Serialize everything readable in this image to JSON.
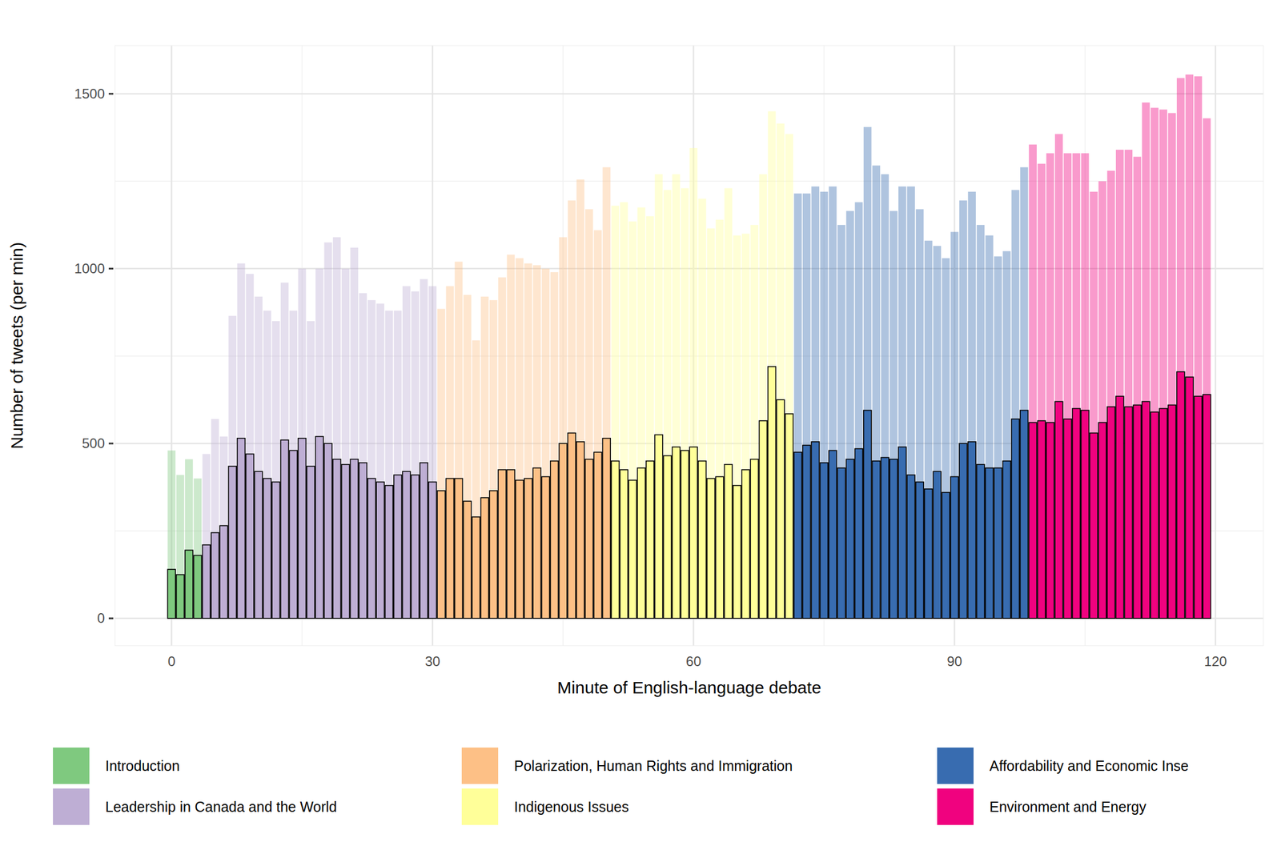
{
  "chart_data": {
    "type": "bar",
    "x_label": "Minute of English-language debate",
    "y_label": "Number of tweets (per min)",
    "xlim": [
      -6.5,
      125.5
    ],
    "ylim": [
      -78,
      1638
    ],
    "xticks": [
      0,
      30,
      60,
      90,
      120
    ],
    "yticks": [
      0,
      500,
      1000,
      1500
    ],
    "grid": true,
    "legend": "bottom",
    "series": [
      {
        "name": "Introduction",
        "color": "#7fc97f",
        "x": [
          0,
          1,
          2,
          3
        ],
        "totals": [
          480,
          410,
          455,
          400
        ],
        "values": [
          140,
          125,
          195,
          180
        ]
      },
      {
        "name": "Leadership in Canada and the World",
        "color": "#beaed4",
        "x": [
          4,
          5,
          6,
          7,
          8,
          9,
          10,
          11,
          12,
          13,
          14,
          15,
          16,
          17,
          18,
          19,
          20,
          21,
          22,
          23,
          24,
          25,
          26,
          27,
          28,
          29,
          30
        ],
        "totals": [
          470,
          570,
          520,
          865,
          1015,
          985,
          920,
          880,
          850,
          960,
          880,
          1000,
          850,
          1000,
          1075,
          1090,
          1000,
          1060,
          930,
          910,
          900,
          880,
          880,
          950,
          935,
          970,
          950
        ],
        "values": [
          210,
          245,
          265,
          435,
          515,
          470,
          420,
          400,
          390,
          510,
          480,
          515,
          435,
          520,
          500,
          455,
          440,
          455,
          445,
          400,
          390,
          380,
          410,
          420,
          410,
          445,
          390
        ]
      },
      {
        "name": "Polarization, Human Rights and Immigration",
        "color": "#fdc086",
        "x": [
          31,
          32,
          33,
          34,
          35,
          36,
          37,
          38,
          39,
          40,
          41,
          42,
          43,
          44,
          45,
          46,
          47,
          48,
          49,
          50
        ],
        "totals": [
          885,
          950,
          1020,
          925,
          795,
          920,
          910,
          975,
          1040,
          1030,
          1015,
          1010,
          1000,
          990,
          1090,
          1195,
          1255,
          1170,
          1110,
          1290
        ],
        "values": [
          365,
          400,
          400,
          335,
          290,
          345,
          365,
          425,
          425,
          395,
          400,
          430,
          405,
          450,
          500,
          530,
          505,
          455,
          475,
          515
        ]
      },
      {
        "name": "Indigenous Issues",
        "color": "#ffff99",
        "x": [
          51,
          52,
          53,
          54,
          55,
          56,
          57,
          58,
          59,
          60,
          61,
          62,
          63,
          64,
          65,
          66,
          67,
          68,
          69,
          70,
          71
        ],
        "totals": [
          1180,
          1190,
          1135,
          1175,
          1150,
          1270,
          1225,
          1270,
          1230,
          1345,
          1200,
          1115,
          1140,
          1230,
          1095,
          1100,
          1125,
          1270,
          1450,
          1415,
          1385
        ],
        "values": [
          450,
          425,
          395,
          430,
          450,
          525,
          465,
          490,
          480,
          490,
          450,
          400,
          405,
          440,
          380,
          425,
          455,
          565,
          720,
          625,
          585
        ]
      },
      {
        "name": "Affordability and Economic Inse",
        "color": "#386cb0",
        "x": [
          72,
          73,
          74,
          75,
          76,
          77,
          78,
          79,
          80,
          81,
          82,
          83,
          84,
          85,
          86,
          87,
          88,
          89,
          90,
          91,
          92,
          93,
          94,
          95,
          96,
          97,
          98
        ],
        "totals": [
          1215,
          1215,
          1235,
          1220,
          1235,
          1125,
          1165,
          1190,
          1405,
          1295,
          1270,
          1165,
          1235,
          1235,
          1170,
          1080,
          1065,
          1030,
          1105,
          1195,
          1220,
          1125,
          1095,
          1035,
          1050,
          1225,
          1290
        ],
        "values": [
          475,
          495,
          505,
          445,
          480,
          430,
          455,
          485,
          595,
          450,
          460,
          455,
          490,
          410,
          390,
          370,
          420,
          360,
          405,
          500,
          505,
          440,
          430,
          430,
          450,
          570,
          595
        ]
      },
      {
        "name": "Environment and Energy",
        "color": "#f0027f",
        "x": [
          99,
          100,
          101,
          102,
          103,
          104,
          105,
          106,
          107,
          108,
          109,
          110,
          111,
          112,
          113,
          114,
          115,
          116,
          117,
          118,
          119
        ],
        "totals": [
          1355,
          1300,
          1330,
          1385,
          1330,
          1330,
          1330,
          1220,
          1250,
          1280,
          1340,
          1340,
          1320,
          1475,
          1460,
          1455,
          1445,
          1545,
          1555,
          1550,
          1430
        ],
        "values": [
          560,
          565,
          560,
          620,
          570,
          600,
          595,
          530,
          560,
          605,
          635,
          605,
          610,
          620,
          590,
          600,
          610,
          705,
          690,
          635,
          640
        ]
      }
    ]
  }
}
